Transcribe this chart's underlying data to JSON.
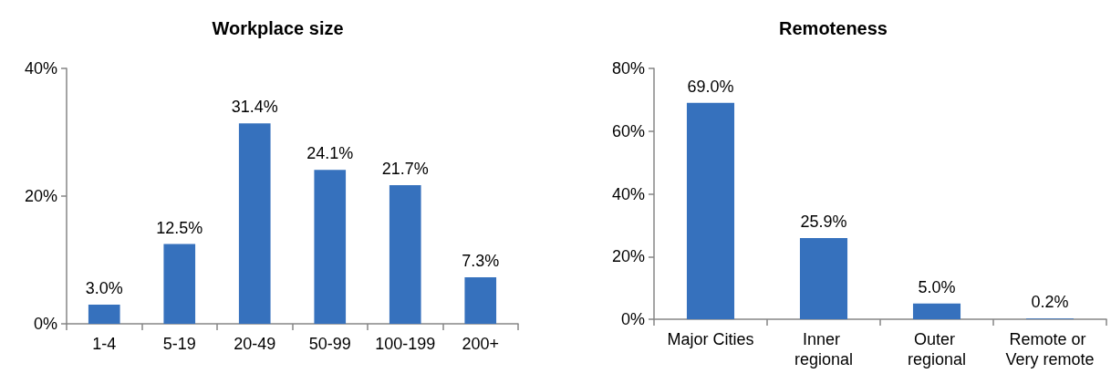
{
  "chart_data": [
    {
      "type": "bar",
      "title": "Workplace size",
      "categories": [
        "1-4",
        "5-19",
        "20-49",
        "50-99",
        "100-199",
        "200+"
      ],
      "values": [
        3.0,
        12.5,
        31.4,
        24.1,
        21.7,
        7.3
      ],
      "value_labels": [
        "3.0%",
        "12.5%",
        "31.4%",
        "24.1%",
        "21.7%",
        "7.3%"
      ],
      "color": "#3671bd",
      "ylim": [
        0,
        40
      ],
      "yticks": [
        {
          "value": 0,
          "label": "0%"
        },
        {
          "value": 20,
          "label": "20%"
        },
        {
          "value": 40,
          "label": "40%"
        }
      ]
    },
    {
      "type": "bar",
      "title": "Remoteness",
      "categories": [
        "Major Cities",
        "Inner regional",
        "Outer regional",
        "Remote or Very remote"
      ],
      "values": [
        69.0,
        25.9,
        5.0,
        0.2
      ],
      "value_labels": [
        "69.0%",
        "25.9%",
        "5.0%",
        "0.2%"
      ],
      "color": "#3671bd",
      "ylim": [
        0,
        80
      ],
      "yticks": [
        {
          "value": 0,
          "label": "0%"
        },
        {
          "value": 20,
          "label": "20%"
        },
        {
          "value": 40,
          "label": "40%"
        },
        {
          "value": 60,
          "label": "60%"
        },
        {
          "value": 80,
          "label": "80%"
        }
      ]
    }
  ]
}
